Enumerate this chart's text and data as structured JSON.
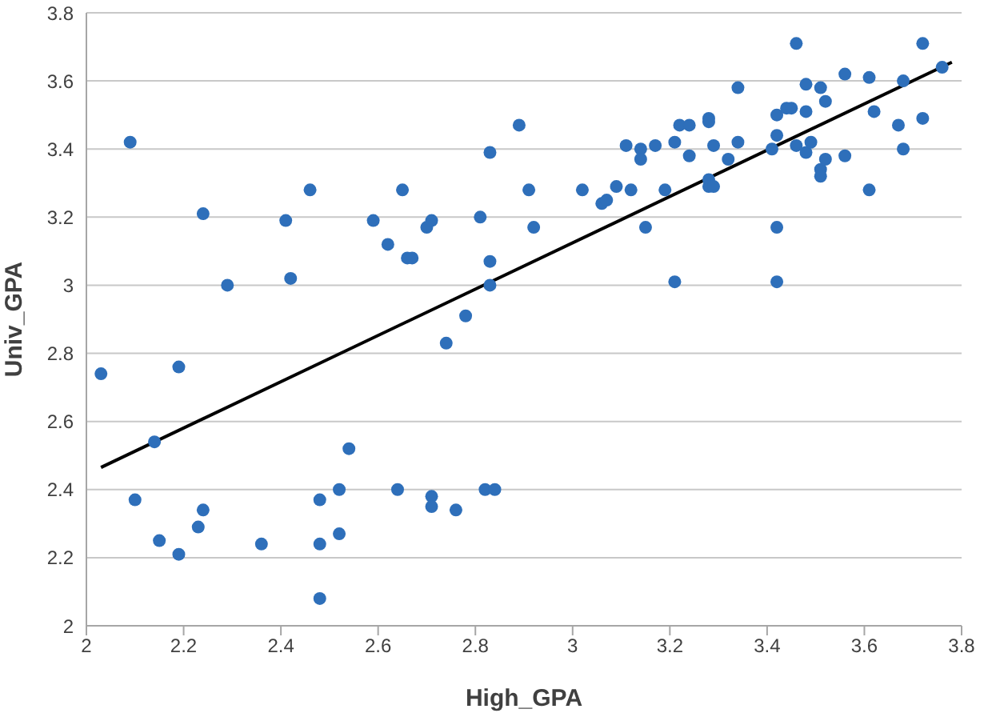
{
  "chart_data": {
    "type": "scatter",
    "xlabel": "High_GPA",
    "ylabel": "Univ_GPA",
    "xlim": [
      2,
      3.8
    ],
    "ylim": [
      2,
      3.8
    ],
    "xticks": [
      2,
      2.2,
      2.4,
      2.6,
      2.8,
      3,
      3.2,
      3.4,
      3.6,
      3.8
    ],
    "yticks": [
      2,
      2.2,
      2.4,
      2.6,
      2.8,
      3,
      3.2,
      3.4,
      3.6,
      3.8
    ],
    "grid": "y",
    "marker": "circle",
    "series": [
      {
        "color": "#2e6fba",
        "x": [
          2.03,
          2.09,
          2.1,
          2.14,
          2.15,
          2.19,
          2.19,
          2.23,
          2.24,
          2.24,
          2.29,
          2.36,
          2.41,
          2.42,
          2.46,
          2.48,
          2.48,
          2.48,
          2.52,
          2.52,
          2.54,
          2.59,
          2.62,
          2.64,
          2.65,
          2.66,
          2.67,
          2.7,
          2.71,
          2.71,
          2.71,
          2.74,
          2.76,
          2.78,
          2.81,
          2.82,
          2.83,
          2.83,
          2.83,
          2.84,
          2.89,
          2.91,
          2.92,
          3.02,
          3.06,
          3.07,
          3.09,
          3.11,
          3.12,
          3.14,
          3.14,
          3.15,
          3.17,
          3.19,
          3.21,
          3.21,
          3.22,
          3.24,
          3.24,
          3.28,
          3.28,
          3.28,
          3.28,
          3.29,
          3.29,
          3.32,
          3.34,
          3.34,
          3.41,
          3.42,
          3.42,
          3.42,
          3.42,
          3.44,
          3.45,
          3.46,
          3.46,
          3.48,
          3.48,
          3.48,
          3.49,
          3.51,
          3.51,
          3.51,
          3.52,
          3.52,
          3.56,
          3.56,
          3.61,
          3.61,
          3.62,
          3.67,
          3.68,
          3.68,
          3.72,
          3.72,
          3.76
        ],
        "values": [
          2.74,
          3.42,
          2.37,
          2.54,
          2.25,
          2.76,
          2.21,
          2.29,
          2.34,
          3.21,
          3.0,
          2.24,
          3.19,
          3.02,
          3.28,
          2.37,
          2.24,
          2.08,
          2.4,
          2.27,
          2.52,
          3.19,
          3.12,
          2.4,
          3.28,
          3.08,
          3.08,
          3.17,
          3.19,
          2.38,
          2.35,
          2.83,
          2.34,
          2.91,
          3.2,
          2.4,
          3.39,
          3.07,
          3.0,
          2.4,
          3.47,
          3.28,
          3.17,
          3.28,
          3.24,
          3.25,
          3.29,
          3.41,
          3.28,
          3.4,
          3.37,
          3.17,
          3.41,
          3.28,
          3.42,
          3.01,
          3.47,
          3.47,
          3.38,
          3.49,
          3.48,
          3.31,
          3.29,
          3.29,
          3.41,
          3.37,
          3.58,
          3.42,
          3.4,
          3.5,
          3.44,
          3.17,
          3.01,
          3.52,
          3.52,
          3.71,
          3.41,
          3.59,
          3.51,
          3.39,
          3.42,
          3.58,
          3.34,
          3.32,
          3.54,
          3.37,
          3.62,
          3.38,
          3.61,
          3.28,
          3.51,
          3.47,
          3.6,
          3.4,
          3.71,
          3.49,
          3.64
        ]
      },
      {
        "type": "line",
        "color": "#000000",
        "x": [
          2.03,
          3.78
        ],
        "values": [
          2.465,
          3.655
        ],
        "marker": "none"
      }
    ]
  }
}
